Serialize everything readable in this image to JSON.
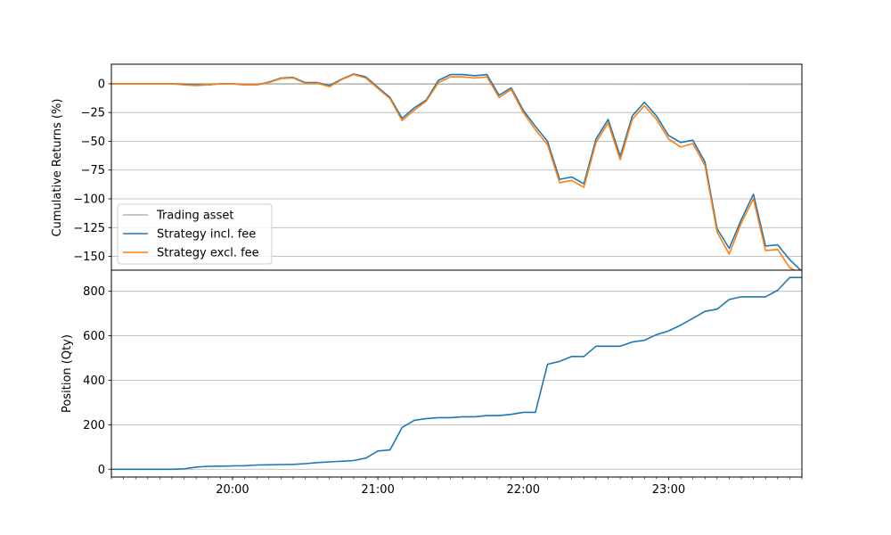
{
  "chart_data": [
    {
      "type": "line",
      "ylabel": "Cumulative Returns (%)",
      "ylim": [
        -162,
        17
      ],
      "yticks": [
        0,
        -25,
        -50,
        -75,
        -100,
        -125,
        -150
      ],
      "grid": "y",
      "legend_position": "lower-left",
      "series": [
        {
          "name": "Trading asset",
          "color": "#b0b0b0",
          "x": [
            "19:10",
            "23:55"
          ],
          "values": [
            0,
            -0.5
          ]
        },
        {
          "name": "Strategy incl. fee",
          "color": "#1f77b4",
          "x": [
            "19:10",
            "19:15",
            "19:20",
            "19:25",
            "19:30",
            "19:35",
            "19:40",
            "19:45",
            "19:50",
            "19:55",
            "20:00",
            "20:05",
            "20:10",
            "20:15",
            "20:20",
            "20:25",
            "20:30",
            "20:35",
            "20:40",
            "20:45",
            "20:50",
            "20:55",
            "21:00",
            "21:05",
            "21:10",
            "21:15",
            "21:20",
            "21:25",
            "21:30",
            "21:35",
            "21:40",
            "21:45",
            "21:50",
            "21:55",
            "22:00",
            "22:05",
            "22:10",
            "22:15",
            "22:20",
            "22:25",
            "22:30",
            "22:35",
            "22:40",
            "22:45",
            "22:50",
            "22:55",
            "23:00",
            "23:05",
            "23:10",
            "23:15",
            "23:20",
            "23:25",
            "23:30",
            "23:35",
            "23:40",
            "23:45",
            "23:50",
            "23:55"
          ],
          "values": [
            0,
            0,
            0,
            0,
            0,
            0,
            -0.5,
            -1,
            -1,
            0,
            0,
            -1,
            -1,
            1.5,
            5,
            5.5,
            1,
            1,
            -1.5,
            4,
            8.5,
            6,
            -3,
            -12,
            -30,
            -21,
            -14,
            3,
            8,
            8,
            7,
            8,
            -10,
            -3.5,
            -23,
            -37,
            -50,
            -83,
            -81,
            -87,
            -48,
            -31,
            -63,
            -28,
            -16,
            -28,
            -45,
            -51,
            -49,
            -68,
            -126,
            -143,
            -118,
            -96,
            -141,
            -140,
            -153,
            -163
          ],
          "extra_x": [
            "23:50",
            "23:55"
          ]
        },
        {
          "name": "Strategy excl. fee",
          "color": "#ff7f0e",
          "x": [
            "19:10",
            "19:15",
            "19:20",
            "19:25",
            "19:30",
            "19:35",
            "19:40",
            "19:45",
            "19:50",
            "19:55",
            "20:00",
            "20:05",
            "20:10",
            "20:15",
            "20:20",
            "20:25",
            "20:30",
            "20:35",
            "20:40",
            "20:45",
            "20:50",
            "20:55",
            "21:00",
            "21:05",
            "21:10",
            "21:15",
            "21:20",
            "21:25",
            "21:30",
            "21:35",
            "21:40",
            "21:45",
            "21:50",
            "21:55",
            "22:00",
            "22:05",
            "22:10",
            "22:15",
            "22:20",
            "22:25",
            "22:30",
            "22:35",
            "22:40",
            "22:45",
            "22:50",
            "22:55",
            "23:00",
            "23:05",
            "23:10",
            "23:15",
            "23:20",
            "23:25",
            "23:30",
            "23:35",
            "23:40",
            "23:45",
            "23:50",
            "23:55"
          ],
          "values": [
            0,
            0,
            0,
            0,
            0,
            0,
            -1,
            -1.5,
            -1,
            0,
            0,
            -1,
            -1,
            1,
            4.5,
            5,
            0.5,
            0.5,
            -2.5,
            3.5,
            8,
            5,
            -4,
            -13,
            -32,
            -23,
            -15,
            1,
            6,
            6,
            5,
            6,
            -12,
            -5,
            -25,
            -40,
            -53,
            -86,
            -84,
            -90,
            -51,
            -34,
            -66,
            -31,
            -19,
            -31,
            -48,
            -55,
            -52,
            -71,
            -129,
            -148,
            -121,
            -100,
            -145,
            -144,
            -160,
            -165
          ]
        }
      ],
      "legend": [
        "Trading asset",
        "Strategy incl. fee",
        "Strategy excl. fee"
      ]
    },
    {
      "type": "line",
      "ylabel": "Position (Qty)",
      "ylim": [
        -35,
        895
      ],
      "yticks": [
        0,
        200,
        400,
        600,
        800
      ],
      "grid": "y",
      "xticks": [
        "20:00",
        "21:00",
        "22:00",
        "23:00"
      ],
      "xlim": [
        "19:10",
        "23:55"
      ],
      "series": [
        {
          "name": "Position",
          "color": "#1f77b4",
          "x": [
            "19:10",
            "19:15",
            "19:20",
            "19:25",
            "19:30",
            "19:35",
            "19:40",
            "19:45",
            "19:50",
            "19:55",
            "20:00",
            "20:05",
            "20:10",
            "20:15",
            "20:20",
            "20:25",
            "20:30",
            "20:35",
            "20:40",
            "20:45",
            "20:50",
            "20:55",
            "21:00",
            "21:05",
            "21:10",
            "21:15",
            "21:20",
            "21:25",
            "21:30",
            "21:35",
            "21:40",
            "21:45",
            "21:50",
            "21:55",
            "22:00",
            "22:05",
            "22:10",
            "22:15",
            "22:20",
            "22:25",
            "22:30",
            "22:35",
            "22:40",
            "22:45",
            "22:50",
            "22:55",
            "23:00",
            "23:05",
            "23:10",
            "23:15",
            "23:20",
            "23:25",
            "23:30",
            "23:35",
            "23:40",
            "23:45",
            "23:50",
            "23:55"
          ],
          "values": [
            0,
            0,
            0,
            0,
            0,
            0,
            2,
            10,
            13,
            14,
            15,
            16,
            19,
            20,
            21,
            22,
            25,
            30,
            33,
            36,
            39,
            50,
            82,
            87,
            188,
            220,
            228,
            232,
            232,
            236,
            236,
            241,
            241,
            247,
            256,
            256,
            472,
            485,
            507,
            507,
            553,
            553,
            553,
            572,
            580,
            605,
            622,
            648,
            678,
            710,
            720,
            763,
            775,
            775,
            775,
            805,
            862,
            862
          ]
        }
      ]
    }
  ]
}
